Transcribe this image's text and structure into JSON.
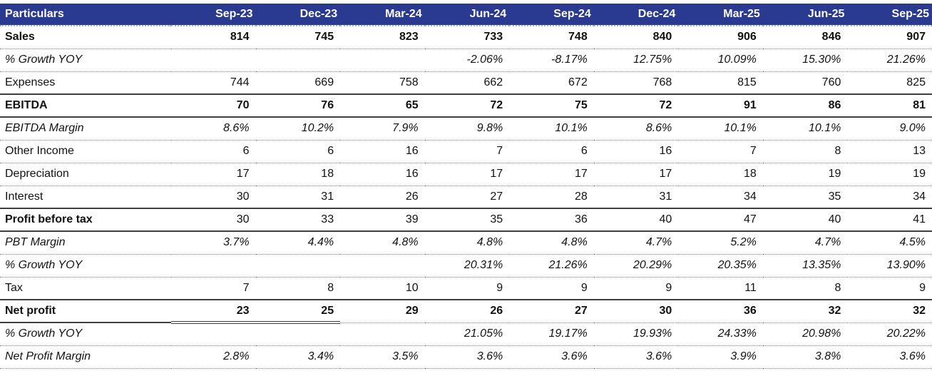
{
  "chart_data": {
    "type": "table",
    "columns": [
      "Particulars",
      "Sep-23",
      "Dec-23",
      "Mar-24",
      "Jun-24",
      "Sep-24",
      "Dec-24",
      "Mar-25",
      "Jun-25",
      "Sep-25"
    ],
    "rows": [
      {
        "label": "Sales",
        "emphasis": "bold",
        "separator": "dotted",
        "values": [
          "814",
          "745",
          "823",
          "733",
          "748",
          "840",
          "906",
          "846",
          "907"
        ]
      },
      {
        "label": "% Growth YOY",
        "emphasis": "italic",
        "separator": "dotted",
        "values": [
          "",
          "",
          "",
          "-2.06%",
          "-8.17%",
          "12.75%",
          "10.09%",
          "15.30%",
          "21.26%"
        ]
      },
      {
        "label": "Expenses",
        "emphasis": "normal",
        "separator": "solid",
        "values": [
          "744",
          "669",
          "758",
          "662",
          "672",
          "768",
          "815",
          "760",
          "825"
        ]
      },
      {
        "label": "EBITDA",
        "emphasis": "bold",
        "separator": "solid",
        "values": [
          "70",
          "76",
          "65",
          "72",
          "75",
          "72",
          "91",
          "86",
          "81"
        ]
      },
      {
        "label": "EBITDA Margin",
        "emphasis": "italic",
        "separator": "dotted",
        "values": [
          "8.6%",
          "10.2%",
          "7.9%",
          "9.8%",
          "10.1%",
          "8.6%",
          "10.1%",
          "10.1%",
          "9.0%"
        ]
      },
      {
        "label": "Other Income",
        "emphasis": "normal",
        "separator": "dotted",
        "values": [
          "6",
          "6",
          "16",
          "7",
          "6",
          "16",
          "7",
          "8",
          "13"
        ]
      },
      {
        "label": "Depreciation",
        "emphasis": "normal",
        "separator": "dotted",
        "values": [
          "17",
          "18",
          "16",
          "17",
          "17",
          "17",
          "18",
          "19",
          "19"
        ]
      },
      {
        "label": "Interest",
        "emphasis": "normal",
        "separator": "solid",
        "values": [
          "30",
          "31",
          "26",
          "27",
          "28",
          "31",
          "34",
          "35",
          "34"
        ]
      },
      {
        "label": "Profit before tax",
        "emphasis": "label-bold",
        "separator": "solid",
        "values": [
          "30",
          "33",
          "39",
          "35",
          "36",
          "40",
          "47",
          "40",
          "41"
        ]
      },
      {
        "label": "PBT Margin",
        "emphasis": "italic",
        "separator": "dotted",
        "values": [
          "3.7%",
          "4.4%",
          "4.8%",
          "4.8%",
          "4.8%",
          "4.7%",
          "5.2%",
          "4.7%",
          "4.5%"
        ]
      },
      {
        "label": "% Growth YOY",
        "emphasis": "italic",
        "separator": "dotted",
        "values": [
          "",
          "",
          "",
          "20.31%",
          "21.26%",
          "20.29%",
          "20.35%",
          "13.35%",
          "13.90%"
        ]
      },
      {
        "label": "Tax",
        "emphasis": "normal",
        "separator": "solid",
        "values": [
          "7",
          "8",
          "10",
          "9",
          "9",
          "9",
          "11",
          "8",
          "9"
        ]
      },
      {
        "label": "Net profit",
        "emphasis": "bold",
        "separator": "mixed",
        "values": [
          "23",
          "25",
          "29",
          "26",
          "27",
          "30",
          "36",
          "32",
          "32"
        ]
      },
      {
        "label": "% Growth YOY",
        "emphasis": "italic",
        "separator": "dotted",
        "values": [
          "",
          "",
          "",
          "21.05%",
          "19.17%",
          "19.93%",
          "24.33%",
          "20.98%",
          "20.22%"
        ]
      },
      {
        "label": "Net Profit Margin",
        "emphasis": "italic",
        "separator": "dotted",
        "values": [
          "2.8%",
          "3.4%",
          "3.5%",
          "3.6%",
          "3.6%",
          "3.6%",
          "3.9%",
          "3.8%",
          "3.6%"
        ]
      }
    ],
    "colors": {
      "header_bg": "#293A90",
      "header_text": "#FFFFFF",
      "body_text": "#121212",
      "dotted_line": "#8D8D8D",
      "solid_line": "#3F3F3F"
    }
  }
}
